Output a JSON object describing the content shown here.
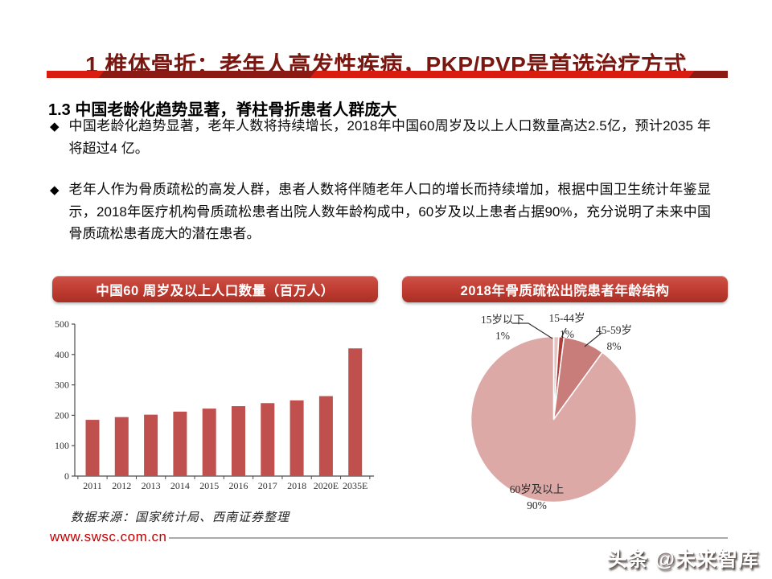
{
  "page": {
    "title": "1  椎体骨折：老年人高发性疾病，PKP/PVP是首选治疗方式",
    "section_heading": "1.3 中国老龄化趋势显著，脊柱骨折患者人群庞大",
    "bullet_marker": "◆",
    "bullets": [
      "中国老龄化趋势显著，老年人数将持续增长，2018年中国60周岁及以上人口数量高达2.5亿，预计2035 年将超过4 亿。",
      "老年人作为骨质疏松的高发人群，患者人数将伴随老年人口的增长而持续增加，根据中国卫生统计年鉴显示，2018年医疗机构骨质疏松患者出院人数年龄构成中，60岁及以上患者占据90%，充分说明了未来中国骨质疏松患者庞大的潜在患者。"
    ],
    "source_note": "数据来源：国家统计局、西南证券整理",
    "footer_url": "www.swsc.com.cn",
    "watermark": "头条 @未来智库"
  },
  "colors": {
    "title_text": "#7a1710",
    "divider_red": "#d91c10",
    "divider_dark": "#8c1a14",
    "chart_header_red": "#bf3b31",
    "footer_url": "#c00000"
  },
  "chart_data": [
    {
      "type": "bar",
      "title": "中国60 周岁及以上人口数量（百万人）",
      "categories": [
        "2011",
        "2012",
        "2013",
        "2014",
        "2015",
        "2016",
        "2017",
        "2018",
        "2020E",
        "2035E"
      ],
      "values": [
        185,
        194,
        202,
        212,
        222,
        230,
        240,
        249,
        263,
        420
      ],
      "ylim": [
        0,
        500
      ],
      "yticks": [
        0,
        100,
        200,
        300,
        400,
        500
      ],
      "bar_color": "#c0504d",
      "xlabel": "",
      "ylabel": "",
      "grid": false,
      "legend": false
    },
    {
      "type": "pie",
      "title": "2018年骨质疏松出院患者年龄结构",
      "start_angle_deg": -90,
      "direction": "clockwise",
      "slices": [
        {
          "label": "15岁以下",
          "pct": 1,
          "pct_label": "1%",
          "color": "#e6c2c1"
        },
        {
          "label": "15-44岁",
          "pct": 1,
          "pct_label": "1%",
          "color": "#af3e3b"
        },
        {
          "label": "45-59岁",
          "pct": 8,
          "pct_label": "8%",
          "color": "#c87d7b"
        },
        {
          "label": "60岁及以上",
          "pct": 90,
          "pct_label": "90%",
          "color": "#dca9a7"
        }
      ]
    }
  ]
}
